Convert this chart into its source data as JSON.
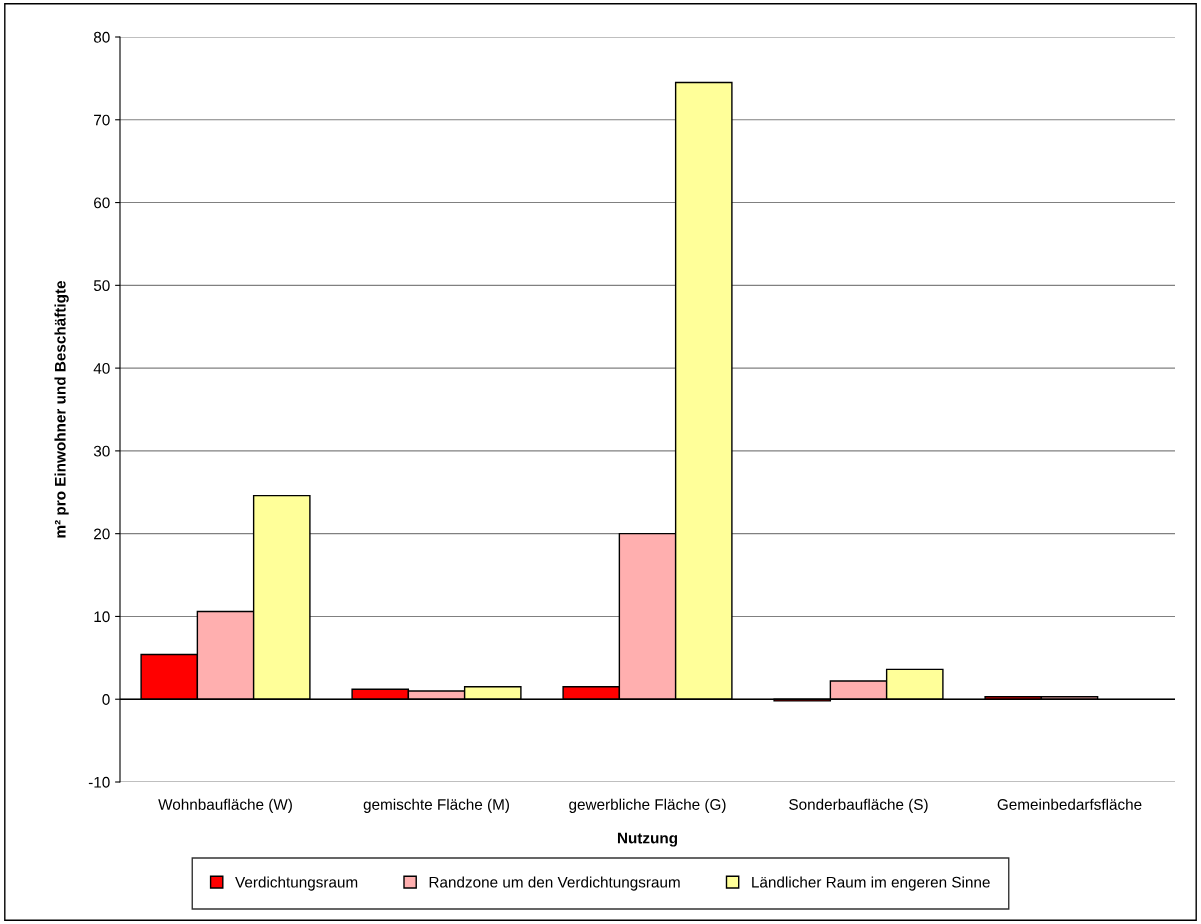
{
  "chart_data": {
    "type": "bar",
    "xlabel": "Nutzung",
    "ylabel": "m² pro Einwohner und Beschäftigte",
    "categories": [
      "Wohnbaufläche (W)",
      "gemischte Fläche (M)",
      "gewerbliche Fläche (G)",
      "Sonderbaufläche (S)",
      "Gemeinbedarfsfläche"
    ],
    "series": [
      {
        "name": "Verdichtungsraum",
        "color": "#ff0000",
        "values": [
          5.4,
          1.2,
          1.5,
          -0.2,
          0.3
        ]
      },
      {
        "name": "Randzone um den Verdichtungsraum",
        "color": "#ffafaf",
        "values": [
          10.6,
          1.0,
          20.0,
          2.2,
          0.3
        ]
      },
      {
        "name": "Ländlicher Raum im engeren Sinne",
        "color": "#ffff99",
        "values": [
          24.6,
          1.5,
          74.5,
          3.6,
          null
        ]
      }
    ],
    "ylim": [
      -10,
      80
    ],
    "yticks": [
      -10,
      0,
      10,
      20,
      30,
      40,
      50,
      60,
      70,
      80
    ],
    "grid": "y",
    "legend": "bottom"
  }
}
